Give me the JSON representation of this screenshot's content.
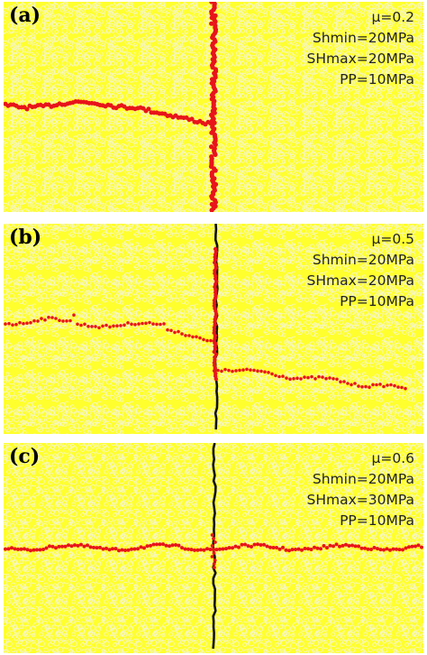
{
  "colors": {
    "granular_medium": "#ffff2e",
    "particle_outline": "#f6f6c8",
    "hydraulic_fracture": "#e8141a",
    "natural_fracture": "#111111",
    "label_text": "#000000"
  },
  "panels": [
    {
      "label": "(a)",
      "mu": "μ=0.2",
      "shmin": "Shmin=20MPa",
      "shmax": "SHmax=20MPa",
      "pp": "PP=10MPa",
      "outcome": "crossing-blocked"
    },
    {
      "label": "(b)",
      "mu": "μ=0.5",
      "shmin": "Shmin=20MPa",
      "shmax": "SHmax=20MPa",
      "pp": "PP=10MPa",
      "outcome": "offset-crossing"
    },
    {
      "label": "(c)",
      "mu": "μ=0.6",
      "shmin": "Shmin=20MPa",
      "shmax": "SHmax=30MPa",
      "pp": "PP=10MPa",
      "outcome": "direct-crossing"
    }
  ]
}
